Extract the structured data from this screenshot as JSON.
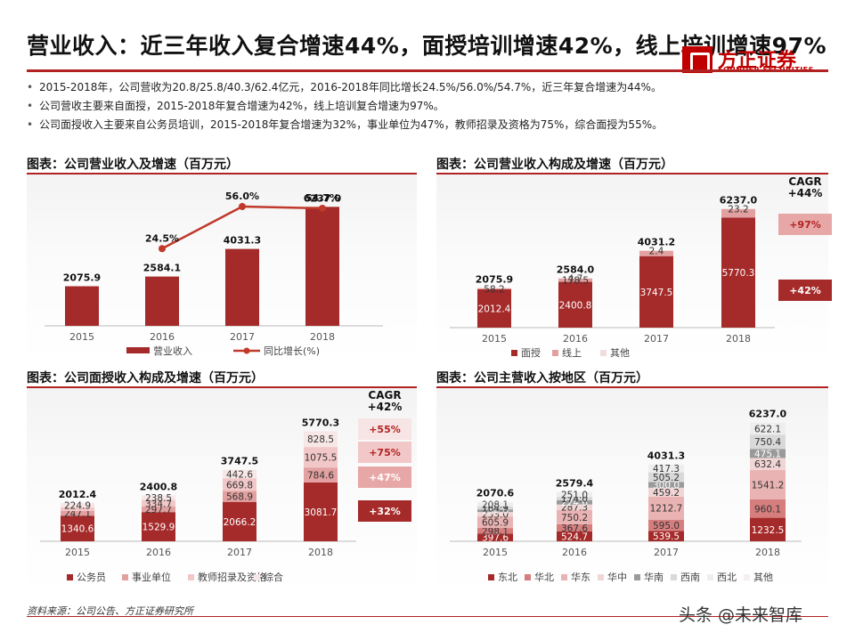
{
  "header": {
    "title": "营业收入：近三年收入复合增速44%，面授培训增速42%，线上培训增速97%",
    "logo_cn": "方正证券",
    "logo_en": "FOUNDER SECURITIES"
  },
  "bullets": [
    "2015-2018年，公司营收为20.8/25.8/40.3/62.4亿元，2016-2018年同比增长24.5%/56.0%/54.7%，近三年复合增速为44%。",
    "公司营收主要来自面授，2015-2018年复合增速为42%，线上培训复合增速为97%。",
    "公司面授收入主要来自公务员培训，2015-2018年复合增速为32%，事业单位为47%，教师招录及资格为75%，综合面授为55%。"
  ],
  "footer": {
    "source": "资料来源：公司公告、方正证券研究所",
    "watermark": "头条 @未来智库"
  },
  "colors": {
    "dark": "#a52a2a",
    "mid": "#e3a0a0",
    "light": "#f2c7c7",
    "pale": "#f7e4e4",
    "accent": "#b22222"
  },
  "chart_data": [
    {
      "id": "revenue",
      "type": "bar",
      "title": "图表：公司营业收入及增速（百万元）",
      "categories": [
        "2015",
        "2016",
        "2017",
        "2018"
      ],
      "series": [
        {
          "name": "营业收入",
          "values": [
            2075.9,
            2584.1,
            4031.3,
            6237.0
          ]
        },
        {
          "name": "同比增长(%)",
          "type": "line",
          "values": [
            null,
            24.5,
            56.0,
            54.7
          ]
        }
      ],
      "value_labels": [
        "2075.9",
        "2584.1",
        "4031.3",
        "6237.0"
      ],
      "growth_labels": [
        "",
        "24.5%",
        "56.0%",
        "54.7%"
      ]
    },
    {
      "id": "composition",
      "type": "bar",
      "stacked": true,
      "title": "图表：公司营业收入构成及增速（百万元）",
      "categories": [
        "2015",
        "2016",
        "2017",
        "2018"
      ],
      "series": [
        {
          "name": "面授",
          "values": [
            2012.4,
            2400.8,
            3747.5,
            5770.3
          ]
        },
        {
          "name": "线上",
          "values": [
            58.2,
            178.5,
            281.3,
            443.5
          ]
        },
        {
          "name": "其他",
          "values": [
            5.3,
            4.7,
            2.4,
            23.2
          ]
        }
      ],
      "segment_labels": [
        [
          "2012.4",
          "58.2",
          ""
        ],
        [
          "2400.8",
          "178.5",
          "4.7"
        ],
        [
          "3747.5",
          "",
          "2.4"
        ],
        [
          "5770.3",
          "",
          "23.2"
        ]
      ],
      "totals": [
        "2075.9",
        "2584.0",
        "4031.2",
        "6237.0"
      ],
      "cagr_title": "CAGR\n+44%",
      "cagr": [
        "+97%",
        "+42%"
      ]
    },
    {
      "id": "offline",
      "type": "bar",
      "stacked": true,
      "title": "图表：公司面授收入构成及增速（百万元）",
      "categories": [
        "2015",
        "2016",
        "2017",
        "2018"
      ],
      "series": [
        {
          "name": "公务员",
          "values": [
            1340.6,
            1529.9,
            2066.2,
            3081.7
          ]
        },
        {
          "name": "事业单位",
          "values": [
            247.1,
            297.7,
            568.9,
            784.6
          ]
        },
        {
          "name": "教师招录及资格",
          "values": [
            200.0,
            334.7,
            669.8,
            1075.5
          ]
        },
        {
          "name": "综合",
          "values": [
            224.9,
            238.5,
            442.6,
            828.5
          ]
        }
      ],
      "segment_labels": [
        [
          "1340.6",
          "247.1",
          "",
          "224.9"
        ],
        [
          "1529.9",
          "297.7",
          "334.7",
          "238.5"
        ],
        [
          "2066.2",
          "568.9",
          "669.8",
          "442.6"
        ],
        [
          "3081.7",
          "784.6",
          "1075.5",
          "828.5"
        ]
      ],
      "totals": [
        "2012.4",
        "2400.8",
        "3747.5",
        "5770.3"
      ],
      "cagr_title": "CAGR\n+42%",
      "cagr": [
        "+55%",
        "+75%",
        "+47%",
        "+32%"
      ]
    },
    {
      "id": "region",
      "type": "bar",
      "stacked": true,
      "title": "图表：公司主营收入按地区（百万元）",
      "categories": [
        "2015",
        "2016",
        "2017",
        "2018"
      ],
      "series": [
        {
          "name": "东北",
          "values": [
            397.6,
            524.7,
            539.5,
            1232.5
          ]
        },
        {
          "name": "华北",
          "values": [
            298.1,
            367.6,
            595.0,
            960.1
          ]
        },
        {
          "name": "华东",
          "values": [
            605.9,
            750.2,
            1212.7,
            1541.2
          ]
        },
        {
          "name": "华中",
          "values": [
            233.0,
            287.3,
            459.2,
            632.4
          ]
        },
        {
          "name": "华南",
          "values": [
            134.0,
            224.6,
            300.0,
            475.1
          ]
        },
        {
          "name": "西南",
          "values": [
            164.9,
            174.0,
            505.2,
            750.4
          ]
        },
        {
          "name": "西北",
          "values": [
            208.1,
            251.0,
            417.3,
            622.1
          ]
        },
        {
          "name": "其他",
          "values": [
            29.0,
            0,
            2.4,
            23.2
          ]
        }
      ],
      "segment_labels": [
        [
          "397.6",
          "298.1",
          "605.9",
          "233.0",
          "134.0",
          "164.9",
          "208.1",
          ""
        ],
        [
          "524.7",
          "367.6",
          "750.2",
          "287.3",
          "224.6",
          "174.0",
          "251.0",
          ""
        ],
        [
          "539.5",
          "595.0",
          "1212.7",
          "459.2",
          "300.0",
          "505.2",
          "417.3",
          ""
        ],
        [
          "1232.5",
          "960.1",
          "1541.2",
          "632.4",
          "475.1",
          "750.4",
          "622.1",
          ""
        ]
      ],
      "totals": [
        "2070.6",
        "2579.4",
        "4031.3",
        "6237.0"
      ]
    }
  ]
}
